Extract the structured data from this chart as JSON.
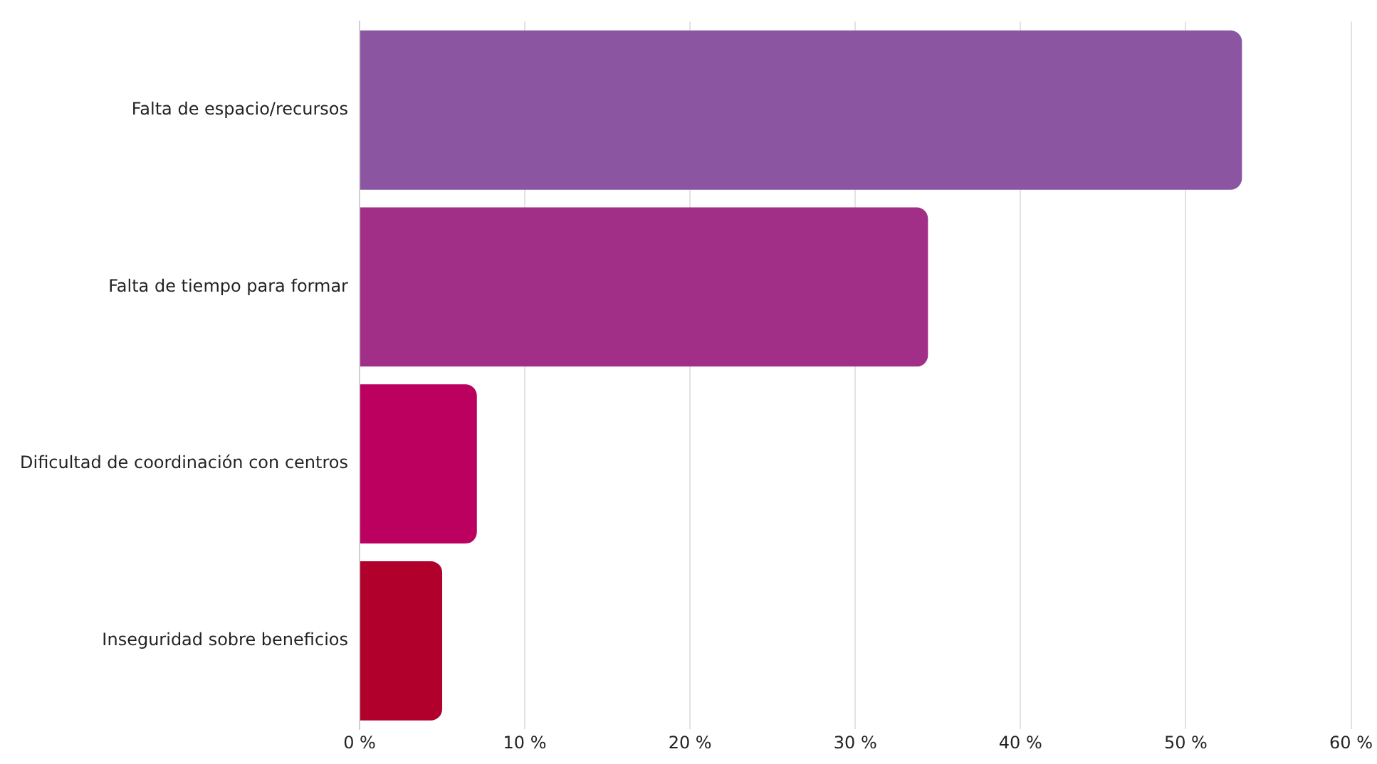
{
  "chart_data": {
    "type": "bar",
    "orientation": "horizontal",
    "categories": [
      "Falta de espacio/recursos",
      "Falta de tiempo para formar",
      "Dificultad de coordinación con centros",
      "Inseguridad sobre beneficios"
    ],
    "values": [
      53.4,
      34.4,
      7.1,
      5.0
    ],
    "colors": [
      "#8b55a1",
      "#a22f87",
      "#bb0060",
      "#b1002b"
    ],
    "xlim": [
      0,
      60
    ],
    "xticks": [
      {
        "value": 0,
        "label": "0 %"
      },
      {
        "value": 10,
        "label": "10 %"
      },
      {
        "value": 20,
        "label": "20 %"
      },
      {
        "value": 30,
        "label": "30 %"
      },
      {
        "value": 40,
        "label": "40 %"
      },
      {
        "value": 50,
        "label": "50 %"
      },
      {
        "value": 60,
        "label": "60 %"
      }
    ],
    "grid": "x",
    "legend": false
  }
}
